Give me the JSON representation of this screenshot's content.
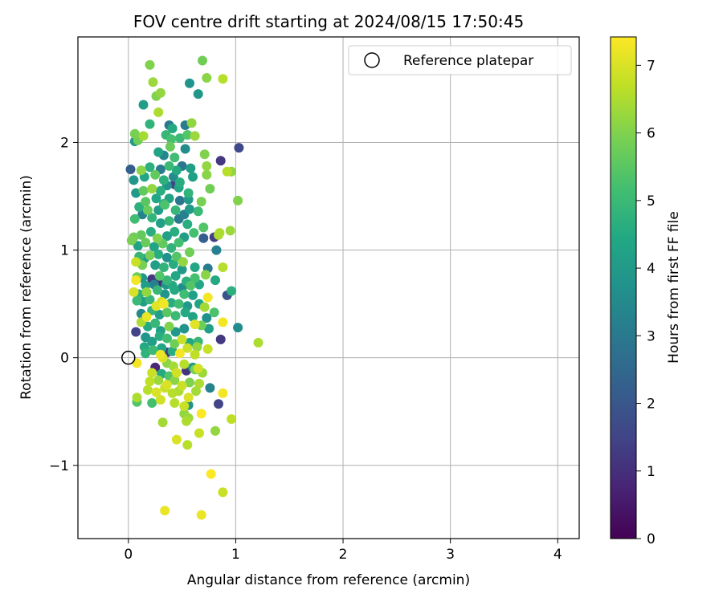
{
  "chart_data": {
    "type": "scatter",
    "title": "FOV centre drift starting at 2024/08/15 17:50:45",
    "xlabel": "Angular distance from reference (arcmin)",
    "ylabel": "Rotation from reference (arcmin)",
    "xlim": [
      -0.47,
      4.2
    ],
    "ylim": [
      -1.68,
      2.98
    ],
    "xticks": [
      0,
      1,
      2,
      3,
      4
    ],
    "xtick_labels": [
      "0",
      "1",
      "2",
      "3",
      "4"
    ],
    "yticks": [
      -1,
      0,
      1,
      2
    ],
    "ytick_labels": [
      "−1",
      "0",
      "1",
      "2"
    ],
    "grid": true,
    "legend": {
      "position": "top-right",
      "entries": [
        "Reference platepar"
      ]
    },
    "reference_point": {
      "x": 0,
      "y": 0
    },
    "colorbar": {
      "label": "Hours from first FF file",
      "range": [
        0,
        7.42
      ],
      "ticks": [
        0,
        1,
        2,
        3,
        4,
        5,
        6,
        7
      ],
      "tick_labels": [
        "0",
        "1",
        "2",
        "3",
        "4",
        "5",
        "6",
        "7"
      ],
      "colormap": "viridis"
    },
    "points": [
      [
        0.2,
        2.72,
        6.0
      ],
      [
        0.69,
        2.76,
        5.8
      ],
      [
        0.23,
        2.56,
        6.3
      ],
      [
        0.57,
        2.55,
        3.8
      ],
      [
        0.73,
        2.6,
        6.1
      ],
      [
        0.88,
        2.59,
        6.6
      ],
      [
        0.26,
        2.43,
        6.0
      ],
      [
        0.3,
        2.46,
        6.2
      ],
      [
        0.65,
        2.45,
        3.9
      ],
      [
        0.14,
        2.35,
        4.1
      ],
      [
        0.28,
        2.28,
        6.5
      ],
      [
        0.2,
        2.17,
        4.8
      ],
      [
        0.38,
        2.16,
        3.0
      ],
      [
        0.41,
        2.13,
        4.5
      ],
      [
        0.53,
        2.16,
        3.1
      ],
      [
        0.59,
        2.18,
        6.2
      ],
      [
        0.06,
        2.08,
        5.9
      ],
      [
        0.14,
        2.06,
        6.4
      ],
      [
        0.06,
        2.01,
        4.0
      ],
      [
        0.09,
        2.02,
        5.8
      ],
      [
        0.35,
        2.07,
        4.9
      ],
      [
        0.4,
        2.03,
        5.2
      ],
      [
        0.48,
        2.04,
        5.0
      ],
      [
        0.55,
        2.07,
        5.4
      ],
      [
        0.62,
        2.06,
        6.3
      ],
      [
        0.39,
        1.96,
        5.7
      ],
      [
        0.28,
        1.91,
        4.3
      ],
      [
        0.33,
        1.88,
        3.4
      ],
      [
        0.53,
        1.94,
        3.6
      ],
      [
        0.43,
        1.86,
        5.1
      ],
      [
        0.71,
        1.89,
        6.0
      ],
      [
        0.86,
        1.83,
        1.2
      ],
      [
        1.03,
        1.95,
        1.6
      ],
      [
        0.02,
        1.75,
        2.2
      ],
      [
        0.12,
        1.74,
        6.1
      ],
      [
        0.2,
        1.77,
        4.7
      ],
      [
        0.3,
        1.75,
        3.1
      ],
      [
        0.38,
        1.78,
        5.0
      ],
      [
        0.45,
        1.74,
        4.5
      ],
      [
        0.5,
        1.78,
        2.9
      ],
      [
        0.58,
        1.76,
        4.2
      ],
      [
        0.73,
        1.78,
        6.2
      ],
      [
        0.92,
        1.73,
        6.6
      ],
      [
        0.96,
        1.73,
        6.2
      ],
      [
        0.05,
        1.65,
        3.9
      ],
      [
        0.15,
        1.68,
        4.4
      ],
      [
        0.25,
        1.7,
        5.6
      ],
      [
        0.33,
        1.65,
        4.7
      ],
      [
        0.42,
        1.68,
        3.5
      ],
      [
        0.48,
        1.63,
        4.6
      ],
      [
        0.6,
        1.68,
        4.2
      ],
      [
        0.73,
        1.7,
        6.1
      ],
      [
        0.14,
        1.55,
        5.6
      ],
      [
        0.22,
        1.57,
        6.2
      ],
      [
        0.3,
        1.55,
        4.6
      ],
      [
        0.36,
        1.6,
        3.8
      ],
      [
        0.43,
        1.61,
        1.5
      ],
      [
        0.47,
        1.58,
        4.4
      ],
      [
        0.56,
        1.53,
        4.8
      ],
      [
        0.76,
        1.57,
        5.8
      ],
      [
        0.07,
        1.53,
        4.0
      ],
      [
        0.16,
        1.45,
        5.5
      ],
      [
        0.26,
        1.48,
        4.4
      ],
      [
        0.33,
        1.43,
        4.8
      ],
      [
        0.38,
        1.48,
        4.3
      ],
      [
        0.48,
        1.46,
        2.9
      ],
      [
        0.56,
        1.47,
        4.0
      ],
      [
        0.68,
        1.45,
        5.9
      ],
      [
        1.02,
        1.46,
        6.0
      ],
      [
        0.1,
        1.4,
        4.7
      ],
      [
        0.18,
        1.37,
        5.7
      ],
      [
        0.28,
        1.37,
        4.1
      ],
      [
        0.34,
        1.42,
        5.3
      ],
      [
        0.44,
        1.37,
        4.9
      ],
      [
        0.52,
        1.33,
        3.2
      ],
      [
        0.57,
        1.38,
        4.0
      ],
      [
        0.65,
        1.36,
        5.0
      ],
      [
        0.06,
        1.29,
        5.1
      ],
      [
        0.13,
        1.33,
        3.3
      ],
      [
        0.22,
        1.3,
        4.8
      ],
      [
        0.3,
        1.25,
        4.2
      ],
      [
        0.38,
        1.27,
        4.9
      ],
      [
        0.47,
        1.29,
        3.0
      ],
      [
        0.55,
        1.24,
        4.6
      ],
      [
        0.7,
        1.21,
        5.4
      ],
      [
        0.85,
        1.16,
        6.5
      ],
      [
        0.95,
        1.18,
        6.3
      ],
      [
        0.05,
        1.12,
        5.8
      ],
      [
        0.12,
        1.14,
        5.6
      ],
      [
        0.21,
        1.17,
        4.6
      ],
      [
        0.27,
        1.11,
        6.0
      ],
      [
        0.36,
        1.13,
        4.2
      ],
      [
        0.43,
        1.17,
        4.6
      ],
      [
        0.52,
        1.12,
        4.1
      ],
      [
        0.61,
        1.16,
        5.2
      ],
      [
        0.7,
        1.11,
        2.2
      ],
      [
        0.8,
        1.12,
        1.4
      ],
      [
        0.84,
        1.14,
        6.5
      ],
      [
        0.03,
        1.09,
        5.9
      ],
      [
        0.09,
        1.04,
        4.3
      ],
      [
        0.16,
        1.07,
        5.7
      ],
      [
        0.24,
        1.03,
        4.3
      ],
      [
        0.32,
        1.06,
        5.6
      ],
      [
        0.4,
        1.02,
        4.8
      ],
      [
        0.47,
        1.07,
        5.2
      ],
      [
        0.57,
        0.98,
        5.8
      ],
      [
        0.82,
        1.0,
        3.2
      ],
      [
        0.1,
        0.94,
        4.9
      ],
      [
        0.15,
        0.92,
        4.0
      ],
      [
        0.2,
        0.95,
        5.9
      ],
      [
        0.28,
        0.96,
        4.6
      ],
      [
        0.36,
        0.93,
        3.7
      ],
      [
        0.45,
        0.94,
        5.4
      ],
      [
        0.51,
        0.89,
        6.2
      ],
      [
        0.07,
        0.89,
        6.8
      ],
      [
        0.13,
        0.86,
        5.9
      ],
      [
        0.25,
        0.86,
        4.1
      ],
      [
        0.33,
        0.84,
        4.8
      ],
      [
        0.42,
        0.87,
        4.6
      ],
      [
        0.5,
        0.82,
        4.0
      ],
      [
        0.62,
        0.84,
        4.4
      ],
      [
        0.74,
        0.83,
        3.1
      ],
      [
        0.88,
        0.84,
        6.6
      ],
      [
        0.08,
        0.75,
        5.8
      ],
      [
        0.13,
        0.74,
        3.9
      ],
      [
        0.22,
        0.73,
        1.2
      ],
      [
        0.29,
        0.76,
        5.4
      ],
      [
        0.36,
        0.72,
        4.9
      ],
      [
        0.44,
        0.76,
        4.4
      ],
      [
        0.54,
        0.71,
        4.7
      ],
      [
        0.62,
        0.74,
        5.2
      ],
      [
        0.72,
        0.77,
        6.1
      ],
      [
        0.81,
        0.72,
        4.5
      ],
      [
        0.07,
        0.72,
        7.3
      ],
      [
        0.16,
        0.67,
        4.1
      ],
      [
        0.24,
        0.68,
        3.2
      ],
      [
        0.28,
        0.69,
        0.8
      ],
      [
        0.35,
        0.68,
        3.9
      ],
      [
        0.41,
        0.67,
        4.5
      ],
      [
        0.5,
        0.65,
        3.6
      ],
      [
        0.58,
        0.67,
        5.4
      ],
      [
        0.66,
        0.68,
        4.4
      ],
      [
        0.05,
        0.61,
        7.0
      ],
      [
        0.1,
        0.59,
        4.7
      ],
      [
        0.17,
        0.61,
        6.2
      ],
      [
        0.27,
        0.63,
        4.9
      ],
      [
        0.34,
        0.59,
        3.8
      ],
      [
        0.43,
        0.63,
        4.5
      ],
      [
        0.52,
        0.59,
        5.1
      ],
      [
        0.6,
        0.58,
        4.2
      ],
      [
        0.74,
        0.56,
        7.3
      ],
      [
        0.92,
        0.58,
        1.9
      ],
      [
        0.96,
        0.62,
        4.7
      ],
      [
        0.08,
        0.53,
        5.0
      ],
      [
        0.14,
        0.52,
        4.1
      ],
      [
        0.2,
        0.54,
        4.9
      ],
      [
        0.26,
        0.48,
        7.1
      ],
      [
        0.31,
        0.52,
        6.9
      ],
      [
        0.33,
        0.5,
        7.3
      ],
      [
        0.4,
        0.51,
        4.6
      ],
      [
        0.47,
        0.5,
        5.1
      ],
      [
        0.55,
        0.48,
        4.0
      ],
      [
        0.66,
        0.5,
        4.3
      ],
      [
        0.71,
        0.47,
        6.4
      ],
      [
        0.12,
        0.41,
        3.5
      ],
      [
        0.17,
        0.38,
        7.2
      ],
      [
        0.22,
        0.44,
        4.8
      ],
      [
        0.29,
        0.4,
        4.1
      ],
      [
        0.36,
        0.42,
        5.5
      ],
      [
        0.44,
        0.39,
        5.0
      ],
      [
        0.53,
        0.42,
        4.5
      ],
      [
        0.6,
        0.38,
        4.3
      ],
      [
        0.73,
        0.37,
        3.7
      ],
      [
        0.8,
        0.42,
        5.3
      ],
      [
        0.88,
        0.33,
        7.3
      ],
      [
        1.02,
        0.28,
        3.6
      ],
      [
        0.07,
        0.24,
        1.5
      ],
      [
        0.12,
        0.33,
        6.5
      ],
      [
        0.18,
        0.29,
        4.5
      ],
      [
        0.25,
        0.32,
        4.9
      ],
      [
        0.3,
        0.25,
        4.2
      ],
      [
        0.38,
        0.29,
        6.0
      ],
      [
        0.44,
        0.24,
        3.9
      ],
      [
        0.52,
        0.27,
        3.8
      ],
      [
        0.62,
        0.31,
        7.1
      ],
      [
        0.68,
        0.3,
        5.8
      ],
      [
        0.75,
        0.27,
        4.2
      ],
      [
        0.86,
        0.17,
        1.2
      ],
      [
        1.21,
        0.14,
        6.5
      ],
      [
        0.16,
        0.19,
        3.9
      ],
      [
        0.22,
        0.15,
        4.1
      ],
      [
        0.29,
        0.2,
        4.6
      ],
      [
        0.36,
        0.18,
        5.1
      ],
      [
        0.43,
        0.13,
        5.8
      ],
      [
        0.5,
        0.17,
        6.8
      ],
      [
        0.57,
        0.14,
        4.4
      ],
      [
        0.65,
        0.15,
        4.9
      ],
      [
        0.15,
        0.1,
        4.5
      ],
      [
        0.23,
        0.07,
        5.0
      ],
      [
        0.31,
        0.09,
        4.4
      ],
      [
        0.41,
        0.06,
        4.6
      ],
      [
        0.48,
        0.04,
        7.3
      ],
      [
        0.55,
        0.09,
        6.8
      ],
      [
        0.64,
        0.1,
        6.2
      ],
      [
        0.74,
        0.08,
        6.8
      ],
      [
        0.16,
        0.04,
        4.8
      ],
      [
        0.3,
        0.03,
        7.2
      ],
      [
        0.36,
        0.05,
        1.3
      ],
      [
        0.62,
        0.03,
        6.7
      ],
      [
        0.08,
        -0.05,
        7.3
      ],
      [
        0.32,
        0.0,
        7.0
      ],
      [
        0.25,
        -0.09,
        0.8
      ],
      [
        0.36,
        -0.05,
        6.1
      ],
      [
        0.42,
        -0.08,
        6.4
      ],
      [
        0.52,
        -0.06,
        6.6
      ],
      [
        0.6,
        -0.09,
        4.0
      ],
      [
        0.65,
        -0.1,
        6.9
      ],
      [
        0.22,
        -0.14,
        6.8
      ],
      [
        0.31,
        -0.15,
        4.5
      ],
      [
        0.38,
        -0.17,
        5.4
      ],
      [
        0.45,
        -0.14,
        6.9
      ],
      [
        0.54,
        -0.12,
        1.1
      ],
      [
        0.62,
        -0.11,
        5.9
      ],
      [
        0.69,
        -0.14,
        6.3
      ],
      [
        0.2,
        -0.22,
        6.7
      ],
      [
        0.28,
        -0.21,
        6.3
      ],
      [
        0.36,
        -0.25,
        7.0
      ],
      [
        0.43,
        -0.21,
        6.1
      ],
      [
        0.5,
        -0.26,
        6.8
      ],
      [
        0.57,
        -0.23,
        6.0
      ],
      [
        0.66,
        -0.24,
        6.5
      ],
      [
        0.76,
        -0.28,
        3.3
      ],
      [
        0.18,
        -0.3,
        6.6
      ],
      [
        0.26,
        -0.32,
        7.0
      ],
      [
        0.34,
        -0.28,
        6.8
      ],
      [
        0.41,
        -0.33,
        6.6
      ],
      [
        0.47,
        -0.31,
        6.5
      ],
      [
        0.56,
        -0.37,
        7.0
      ],
      [
        0.63,
        -0.31,
        6.4
      ],
      [
        0.88,
        -0.33,
        7.3
      ],
      [
        0.08,
        -0.37,
        6.5
      ],
      [
        0.3,
        -0.39,
        6.9
      ],
      [
        0.43,
        -0.42,
        6.6
      ],
      [
        0.52,
        -0.45,
        6.8
      ],
      [
        0.56,
        -0.44,
        3.7
      ],
      [
        0.08,
        -0.41,
        5.4
      ],
      [
        0.22,
        -0.42,
        5.2
      ],
      [
        0.84,
        -0.43,
        1.5
      ],
      [
        0.52,
        -0.52,
        6.2
      ],
      [
        0.56,
        -0.56,
        6.3
      ],
      [
        0.68,
        -0.52,
        7.4
      ],
      [
        0.32,
        -0.6,
        6.4
      ],
      [
        0.54,
        -0.59,
        6.5
      ],
      [
        0.96,
        -0.57,
        6.7
      ],
      [
        0.81,
        -0.68,
        6.2
      ],
      [
        0.66,
        -0.7,
        6.8
      ],
      [
        0.45,
        -0.76,
        7.0
      ],
      [
        0.55,
        -0.81,
        6.6
      ],
      [
        0.77,
        -1.08,
        7.4
      ],
      [
        0.88,
        -1.25,
        6.8
      ],
      [
        0.34,
        -1.42,
        7.2
      ],
      [
        0.68,
        -1.46,
        7.2
      ]
    ]
  }
}
